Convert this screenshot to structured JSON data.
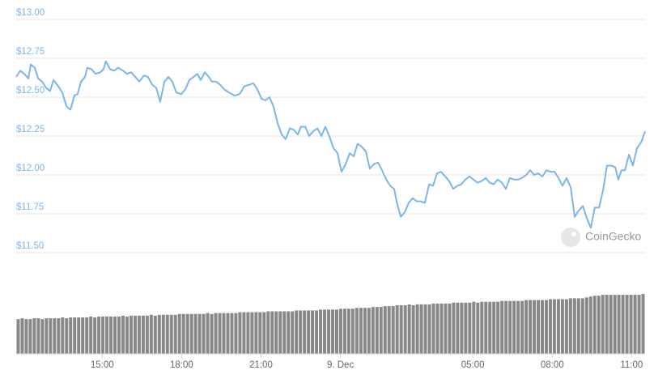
{
  "watermark": "CoinGecko",
  "chart_data": [
    {
      "type": "line",
      "color": "#7cb5ec",
      "grid": true,
      "xlim": [
        11.75,
        35.51
      ],
      "ylim": [
        11.5,
        13.0
      ],
      "xticks": [
        {
          "value": 15,
          "label": "15:00"
        },
        {
          "value": 18,
          "label": "18:00"
        },
        {
          "value": 21,
          "label": "21:00"
        },
        {
          "value": 24,
          "label": "9. Dec"
        },
        {
          "value": 29,
          "label": "05:00"
        },
        {
          "value": 32,
          "label": "08:00"
        },
        {
          "value": 35,
          "label": "11:00"
        }
      ],
      "yticks": [
        {
          "value": 11.5,
          "label": "$11.50"
        },
        {
          "value": 11.75,
          "label": "$11.75"
        },
        {
          "value": 12.0,
          "label": "$12.00"
        },
        {
          "value": 12.25,
          "label": "$12.25"
        },
        {
          "value": 12.5,
          "label": "$12.50"
        },
        {
          "value": 12.75,
          "label": "$12.75"
        },
        {
          "value": 13.0,
          "label": "$13.00"
        }
      ],
      "x": [
        11.75,
        11.9,
        12.06,
        12.21,
        12.3,
        12.45,
        12.58,
        12.73,
        12.88,
        13.03,
        13.16,
        13.34,
        13.49,
        13.65,
        13.8,
        13.95,
        14.07,
        14.2,
        14.35,
        14.44,
        14.59,
        14.75,
        14.93,
        15.05,
        15.14,
        15.3,
        15.45,
        15.6,
        15.79,
        15.94,
        16.09,
        16.25,
        16.4,
        16.58,
        16.73,
        16.89,
        17.04,
        17.19,
        17.35,
        17.5,
        17.65,
        17.8,
        17.99,
        18.14,
        18.29,
        18.45,
        18.6,
        18.72,
        18.88,
        19.03,
        19.15,
        19.3,
        19.46,
        19.61,
        19.79,
        20.01,
        20.19,
        20.37,
        20.56,
        20.71,
        20.86,
        21.02,
        21.17,
        21.32,
        21.47,
        21.63,
        21.78,
        21.93,
        22.09,
        22.24,
        22.39,
        22.51,
        22.67,
        22.82,
        22.97,
        23.13,
        23.28,
        23.43,
        23.58,
        23.74,
        23.89,
        24.04,
        24.2,
        24.35,
        24.5,
        24.65,
        24.81,
        24.96,
        25.11,
        25.27,
        25.42,
        25.57,
        25.73,
        25.88,
        26.03,
        26.12,
        26.28,
        26.43,
        26.58,
        26.73,
        26.89,
        27.04,
        27.19,
        27.35,
        27.5,
        27.65,
        27.8,
        27.96,
        28.11,
        28.26,
        28.42,
        28.57,
        28.72,
        28.87,
        29.03,
        29.18,
        29.33,
        29.49,
        29.64,
        29.79,
        29.94,
        30.1,
        30.25,
        30.4,
        30.56,
        30.71,
        30.86,
        31.02,
        31.17,
        31.32,
        31.47,
        31.63,
        31.78,
        31.93,
        32.09,
        32.24,
        32.39,
        32.54,
        32.7,
        32.85,
        33.0,
        33.16,
        33.31,
        33.46,
        33.61,
        33.77,
        33.92,
        34.07,
        34.23,
        34.38,
        34.5,
        34.62,
        34.75,
        34.9,
        35.05,
        35.2,
        35.36,
        35.51
      ],
      "values": [
        12.63,
        12.67,
        12.65,
        12.62,
        12.71,
        12.69,
        12.62,
        12.6,
        12.56,
        12.54,
        12.61,
        12.57,
        12.53,
        12.44,
        12.42,
        12.51,
        12.52,
        12.6,
        12.63,
        12.69,
        12.68,
        12.65,
        12.66,
        12.68,
        12.73,
        12.68,
        12.67,
        12.69,
        12.67,
        12.65,
        12.66,
        12.63,
        12.6,
        12.64,
        12.63,
        12.58,
        12.56,
        12.47,
        12.6,
        12.63,
        12.6,
        12.53,
        12.52,
        12.55,
        12.61,
        12.63,
        12.65,
        12.61,
        12.66,
        12.63,
        12.6,
        12.6,
        12.58,
        12.55,
        12.53,
        12.51,
        12.52,
        12.57,
        12.58,
        12.59,
        12.55,
        12.49,
        12.48,
        12.5,
        12.44,
        12.33,
        12.26,
        12.23,
        12.3,
        12.29,
        12.26,
        12.31,
        12.31,
        12.25,
        12.28,
        12.3,
        12.25,
        12.31,
        12.25,
        12.17,
        12.14,
        12.02,
        12.07,
        12.14,
        12.12,
        12.2,
        12.18,
        12.15,
        12.04,
        12.07,
        12.08,
        12.03,
        11.97,
        11.93,
        11.91,
        11.83,
        11.73,
        11.76,
        11.82,
        11.85,
        11.83,
        11.83,
        11.82,
        11.94,
        11.93,
        12.01,
        12.02,
        11.99,
        11.96,
        11.91,
        11.93,
        11.94,
        11.97,
        11.99,
        11.97,
        11.95,
        11.96,
        11.98,
        11.95,
        11.94,
        11.97,
        11.95,
        11.91,
        11.98,
        11.97,
        11.97,
        11.98,
        12.0,
        12.03,
        12.0,
        12.01,
        11.99,
        12.03,
        12.02,
        12.02,
        11.98,
        11.93,
        11.98,
        11.92,
        11.73,
        11.77,
        11.8,
        11.72,
        11.66,
        11.79,
        11.79,
        11.9,
        12.06,
        12.06,
        12.05,
        11.97,
        12.03,
        12.03,
        12.13,
        12.06,
        12.17,
        12.21,
        12.28
      ]
    },
    {
      "type": "bar",
      "color": "#888888",
      "ylim": [
        0,
        70
      ],
      "values": [
        40,
        41,
        40,
        40,
        41,
        41,
        40,
        41,
        41,
        41,
        41,
        42,
        41,
        42,
        42,
        42,
        42,
        42,
        43,
        42,
        43,
        43,
        43,
        43,
        43,
        43,
        44,
        43,
        44,
        44,
        44,
        44,
        44,
        45,
        44,
        45,
        45,
        45,
        45,
        45,
        46,
        46,
        46,
        46,
        46,
        46,
        46,
        47,
        46,
        47,
        47,
        47,
        47,
        47,
        47,
        48,
        48,
        48,
        48,
        48,
        48,
        48,
        49,
        49,
        49,
        49,
        49,
        49,
        49,
        50,
        50,
        50,
        50,
        50,
        50,
        51,
        51,
        51,
        51,
        51,
        52,
        52,
        52,
        52,
        53,
        53,
        53,
        53,
        54,
        54,
        54,
        55,
        55,
        55,
        56,
        56,
        56,
        57,
        56,
        57,
        57,
        57,
        57,
        58,
        58,
        58,
        58,
        58,
        59,
        59,
        59,
        59,
        59,
        60,
        59,
        60,
        60,
        60,
        60,
        60,
        61,
        61,
        61,
        61,
        61,
        61,
        62,
        62,
        62,
        62,
        62,
        62,
        63,
        63,
        63,
        63,
        63,
        64,
        64,
        64,
        64,
        65,
        66,
        67,
        67,
        68,
        68,
        68,
        68,
        68,
        68,
        68,
        68,
        68,
        68,
        69
      ]
    }
  ]
}
